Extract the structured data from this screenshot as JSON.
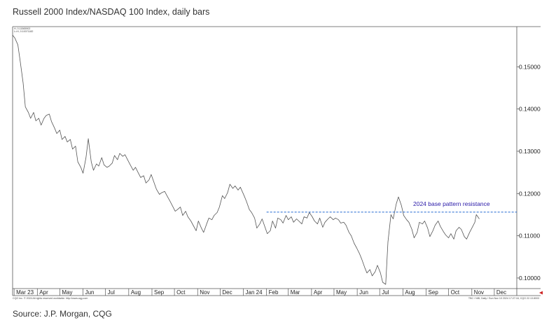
{
  "page": {
    "title": "Russell 2000 Index/NASDAQ 100 Index, daily bars",
    "source": "Source: J.P. Morgan, CQG"
  },
  "chart_data": {
    "type": "line",
    "title": "Russell 2000 Index/NASDAQ 100 Index, daily bars",
    "xlabel": "",
    "ylabel": "",
    "ylim": [
      0.0975,
      0.1595
    ],
    "x_start": "2023-02-27",
    "x_end": "2024-12-31",
    "month_labels": [
      {
        "date": "2023-03-01",
        "label": "Mar 23"
      },
      {
        "date": "2023-04-01",
        "label": "Apr"
      },
      {
        "date": "2023-05-01",
        "label": "May"
      },
      {
        "date": "2023-06-01",
        "label": "Jun"
      },
      {
        "date": "2023-07-01",
        "label": "Jul"
      },
      {
        "date": "2023-08-01",
        "label": "Aug"
      },
      {
        "date": "2023-09-01",
        "label": "Sep"
      },
      {
        "date": "2023-10-01",
        "label": "Oct"
      },
      {
        "date": "2023-11-01",
        "label": "Nov"
      },
      {
        "date": "2023-12-01",
        "label": "Dec"
      },
      {
        "date": "2024-01-01",
        "label": "Jan 24"
      },
      {
        "date": "2024-02-01",
        "label": "Feb"
      },
      {
        "date": "2024-03-01",
        "label": "Mar"
      },
      {
        "date": "2024-04-01",
        "label": "Apr"
      },
      {
        "date": "2024-05-01",
        "label": "May"
      },
      {
        "date": "2024-06-01",
        "label": "Jun"
      },
      {
        "date": "2024-07-01",
        "label": "Jul"
      },
      {
        "date": "2024-08-01",
        "label": "Aug"
      },
      {
        "date": "2024-09-01",
        "label": "Sep"
      },
      {
        "date": "2024-10-01",
        "label": "Oct"
      },
      {
        "date": "2024-11-01",
        "label": "Nov"
      },
      {
        "date": "2024-12-01",
        "label": "Dec"
      }
    ],
    "y_ticks": [
      {
        "value": 0.15,
        "label": "0.15000"
      },
      {
        "value": 0.14,
        "label": "0.14000"
      },
      {
        "value": 0.13,
        "label": "0.13000"
      },
      {
        "value": 0.12,
        "label": "0.12000"
      },
      {
        "value": 0.11,
        "label": "0.11000"
      },
      {
        "value": 0.1,
        "label": "0.10000"
      }
    ],
    "series": [
      {
        "color": "#555555",
        "points": [
          [
            "2023-02-27",
            0.1575
          ],
          [
            "2023-03-02",
            0.1568
          ],
          [
            "2023-03-06",
            0.1552
          ],
          [
            "2023-03-09",
            0.1515
          ],
          [
            "2023-03-13",
            0.1462
          ],
          [
            "2023-03-16",
            0.1405
          ],
          [
            "2023-03-20",
            0.1392
          ],
          [
            "2023-03-23",
            0.1378
          ],
          [
            "2023-03-27",
            0.1392
          ],
          [
            "2023-03-30",
            0.1372
          ],
          [
            "2023-04-03",
            0.1378
          ],
          [
            "2023-04-06",
            0.1362
          ],
          [
            "2023-04-10",
            0.1378
          ],
          [
            "2023-04-13",
            0.1385
          ],
          [
            "2023-04-17",
            0.1388
          ],
          [
            "2023-04-20",
            0.137
          ],
          [
            "2023-04-24",
            0.1355
          ],
          [
            "2023-04-27",
            0.1342
          ],
          [
            "2023-05-01",
            0.135
          ],
          [
            "2023-05-04",
            0.1328
          ],
          [
            "2023-05-08",
            0.1335
          ],
          [
            "2023-05-11",
            0.1322
          ],
          [
            "2023-05-15",
            0.1328
          ],
          [
            "2023-05-18",
            0.1305
          ],
          [
            "2023-05-22",
            0.1312
          ],
          [
            "2023-05-25",
            0.1275
          ],
          [
            "2023-05-29",
            0.1262
          ],
          [
            "2023-06-01",
            0.1248
          ],
          [
            "2023-06-05",
            0.1285
          ],
          [
            "2023-06-08",
            0.133
          ],
          [
            "2023-06-12",
            0.1275
          ],
          [
            "2023-06-15",
            0.1255
          ],
          [
            "2023-06-19",
            0.127
          ],
          [
            "2023-06-22",
            0.1265
          ],
          [
            "2023-06-26",
            0.1285
          ],
          [
            "2023-06-29",
            0.1268
          ],
          [
            "2023-07-03",
            0.1262
          ],
          [
            "2023-07-06",
            0.1265
          ],
          [
            "2023-07-10",
            0.1272
          ],
          [
            "2023-07-13",
            0.129
          ],
          [
            "2023-07-17",
            0.128
          ],
          [
            "2023-07-20",
            0.1295
          ],
          [
            "2023-07-24",
            0.1288
          ],
          [
            "2023-07-27",
            0.1292
          ],
          [
            "2023-07-31",
            0.1278
          ],
          [
            "2023-08-03",
            0.1268
          ],
          [
            "2023-08-07",
            0.1255
          ],
          [
            "2023-08-10",
            0.1262
          ],
          [
            "2023-08-14",
            0.1248
          ],
          [
            "2023-08-17",
            0.1238
          ],
          [
            "2023-08-21",
            0.1242
          ],
          [
            "2023-08-24",
            0.1225
          ],
          [
            "2023-08-28",
            0.1232
          ],
          [
            "2023-08-31",
            0.1245
          ],
          [
            "2023-09-04",
            0.1225
          ],
          [
            "2023-09-07",
            0.121
          ],
          [
            "2023-09-11",
            0.1198
          ],
          [
            "2023-09-14",
            0.1202
          ],
          [
            "2023-09-18",
            0.1205
          ],
          [
            "2023-09-21",
            0.1195
          ],
          [
            "2023-09-25",
            0.1182
          ],
          [
            "2023-09-28",
            0.1172
          ],
          [
            "2023-10-02",
            0.1158
          ],
          [
            "2023-10-05",
            0.1162
          ],
          [
            "2023-10-09",
            0.1168
          ],
          [
            "2023-10-12",
            0.1148
          ],
          [
            "2023-10-16",
            0.1158
          ],
          [
            "2023-10-19",
            0.1145
          ],
          [
            "2023-10-23",
            0.1135
          ],
          [
            "2023-10-26",
            0.1125
          ],
          [
            "2023-10-30",
            0.1112
          ],
          [
            "2023-11-02",
            0.1135
          ],
          [
            "2023-11-06",
            0.1118
          ],
          [
            "2023-11-09",
            0.1108
          ],
          [
            "2023-11-13",
            0.1128
          ],
          [
            "2023-11-16",
            0.1142
          ],
          [
            "2023-11-20",
            0.1138
          ],
          [
            "2023-11-23",
            0.1148
          ],
          [
            "2023-11-27",
            0.1155
          ],
          [
            "2023-11-30",
            0.1168
          ],
          [
            "2023-12-04",
            0.1195
          ],
          [
            "2023-12-07",
            0.1188
          ],
          [
            "2023-12-11",
            0.1202
          ],
          [
            "2023-12-14",
            0.1222
          ],
          [
            "2023-12-18",
            0.1212
          ],
          [
            "2023-12-21",
            0.1218
          ],
          [
            "2023-12-25",
            0.1208
          ],
          [
            "2023-12-28",
            0.1215
          ],
          [
            "2024-01-02",
            0.1195
          ],
          [
            "2024-01-05",
            0.1182
          ],
          [
            "2024-01-09",
            0.1162
          ],
          [
            "2024-01-12",
            0.1155
          ],
          [
            "2024-01-16",
            0.1142
          ],
          [
            "2024-01-19",
            0.1118
          ],
          [
            "2024-01-23",
            0.1128
          ],
          [
            "2024-01-26",
            0.114
          ],
          [
            "2024-01-30",
            0.112
          ],
          [
            "2024-02-02",
            0.1105
          ],
          [
            "2024-02-06",
            0.1112
          ],
          [
            "2024-02-09",
            0.1135
          ],
          [
            "2024-02-13",
            0.1118
          ],
          [
            "2024-02-16",
            0.1142
          ],
          [
            "2024-02-20",
            0.1138
          ],
          [
            "2024-02-23",
            0.113
          ],
          [
            "2024-02-27",
            0.1148
          ],
          [
            "2024-03-01",
            0.1138
          ],
          [
            "2024-03-05",
            0.1145
          ],
          [
            "2024-03-08",
            0.1132
          ],
          [
            "2024-03-12",
            0.114
          ],
          [
            "2024-03-15",
            0.1135
          ],
          [
            "2024-03-19",
            0.1128
          ],
          [
            "2024-03-22",
            0.1145
          ],
          [
            "2024-03-26",
            0.1142
          ],
          [
            "2024-03-29",
            0.1155
          ],
          [
            "2024-04-02",
            0.1145
          ],
          [
            "2024-04-05",
            0.1135
          ],
          [
            "2024-04-09",
            0.1128
          ],
          [
            "2024-04-12",
            0.1142
          ],
          [
            "2024-04-16",
            0.112
          ],
          [
            "2024-04-19",
            0.1132
          ],
          [
            "2024-04-23",
            0.114
          ],
          [
            "2024-04-26",
            0.1145
          ],
          [
            "2024-04-30",
            0.1138
          ],
          [
            "2024-05-03",
            0.1142
          ],
          [
            "2024-05-07",
            0.1138
          ],
          [
            "2024-05-10",
            0.113
          ],
          [
            "2024-05-14",
            0.1132
          ],
          [
            "2024-05-17",
            0.1125
          ],
          [
            "2024-05-21",
            0.1108
          ],
          [
            "2024-05-24",
            0.11
          ],
          [
            "2024-05-28",
            0.1082
          ],
          [
            "2024-05-31",
            0.1072
          ],
          [
            "2024-06-04",
            0.1058
          ],
          [
            "2024-06-07",
            0.1045
          ],
          [
            "2024-06-11",
            0.1025
          ],
          [
            "2024-06-14",
            0.1012
          ],
          [
            "2024-06-18",
            0.102
          ],
          [
            "2024-06-21",
            0.1005
          ],
          [
            "2024-06-25",
            0.1015
          ],
          [
            "2024-06-28",
            0.103
          ],
          [
            "2024-07-02",
            0.1012
          ],
          [
            "2024-07-05",
            0.099
          ],
          [
            "2024-07-09",
            0.0985
          ],
          [
            "2024-07-12",
            0.1085
          ],
          [
            "2024-07-16",
            0.115
          ],
          [
            "2024-07-19",
            0.114
          ],
          [
            "2024-07-23",
            0.1175
          ],
          [
            "2024-07-26",
            0.1192
          ],
          [
            "2024-07-30",
            0.1172
          ],
          [
            "2024-08-02",
            0.1148
          ],
          [
            "2024-08-06",
            0.1138
          ],
          [
            "2024-08-09",
            0.1132
          ],
          [
            "2024-08-13",
            0.1115
          ],
          [
            "2024-08-16",
            0.1095
          ],
          [
            "2024-08-20",
            0.1108
          ],
          [
            "2024-08-23",
            0.1132
          ],
          [
            "2024-08-27",
            0.1128
          ],
          [
            "2024-08-30",
            0.1135
          ],
          [
            "2024-09-03",
            0.1118
          ],
          [
            "2024-09-06",
            0.1098
          ],
          [
            "2024-09-10",
            0.1112
          ],
          [
            "2024-09-13",
            0.1125
          ],
          [
            "2024-09-17",
            0.1135
          ],
          [
            "2024-09-20",
            0.1122
          ],
          [
            "2024-09-24",
            0.111
          ],
          [
            "2024-09-27",
            0.1102
          ],
          [
            "2024-10-01",
            0.1095
          ],
          [
            "2024-10-04",
            0.1105
          ],
          [
            "2024-10-08",
            0.1092
          ],
          [
            "2024-10-11",
            0.1112
          ],
          [
            "2024-10-15",
            0.112
          ],
          [
            "2024-10-18",
            0.1115
          ],
          [
            "2024-10-22",
            0.1098
          ],
          [
            "2024-10-25",
            0.1092
          ],
          [
            "2024-10-29",
            0.1108
          ],
          [
            "2024-11-01",
            0.1118
          ],
          [
            "2024-11-05",
            0.1132
          ],
          [
            "2024-11-07",
            0.115
          ],
          [
            "2024-11-11",
            0.114
          ]
        ]
      }
    ],
    "resistance": {
      "label": "2024 base pattern resistance",
      "value": 0.1156,
      "x_from": "2024-02-01",
      "x_to": "2024-12-31",
      "color": "#3a78d6",
      "label_color": "#2a1aa8"
    },
    "grid": false,
    "legend": "none",
    "y_axis_side": "right"
  },
  "header_info": {
    "line1": "H, 0.11565902",
    "line2": "L=H, 0.10071182"
  },
  "footer_info": {
    "left": "CQG Inc. © 2024 All rights reserved worldwide. http://www.cqg.com",
    "right": "TBC / NIB, Daily / Sun Nov 10 2024 17:27:16, CQG 22.13.8003"
  },
  "arrow_color": "#cc2222"
}
